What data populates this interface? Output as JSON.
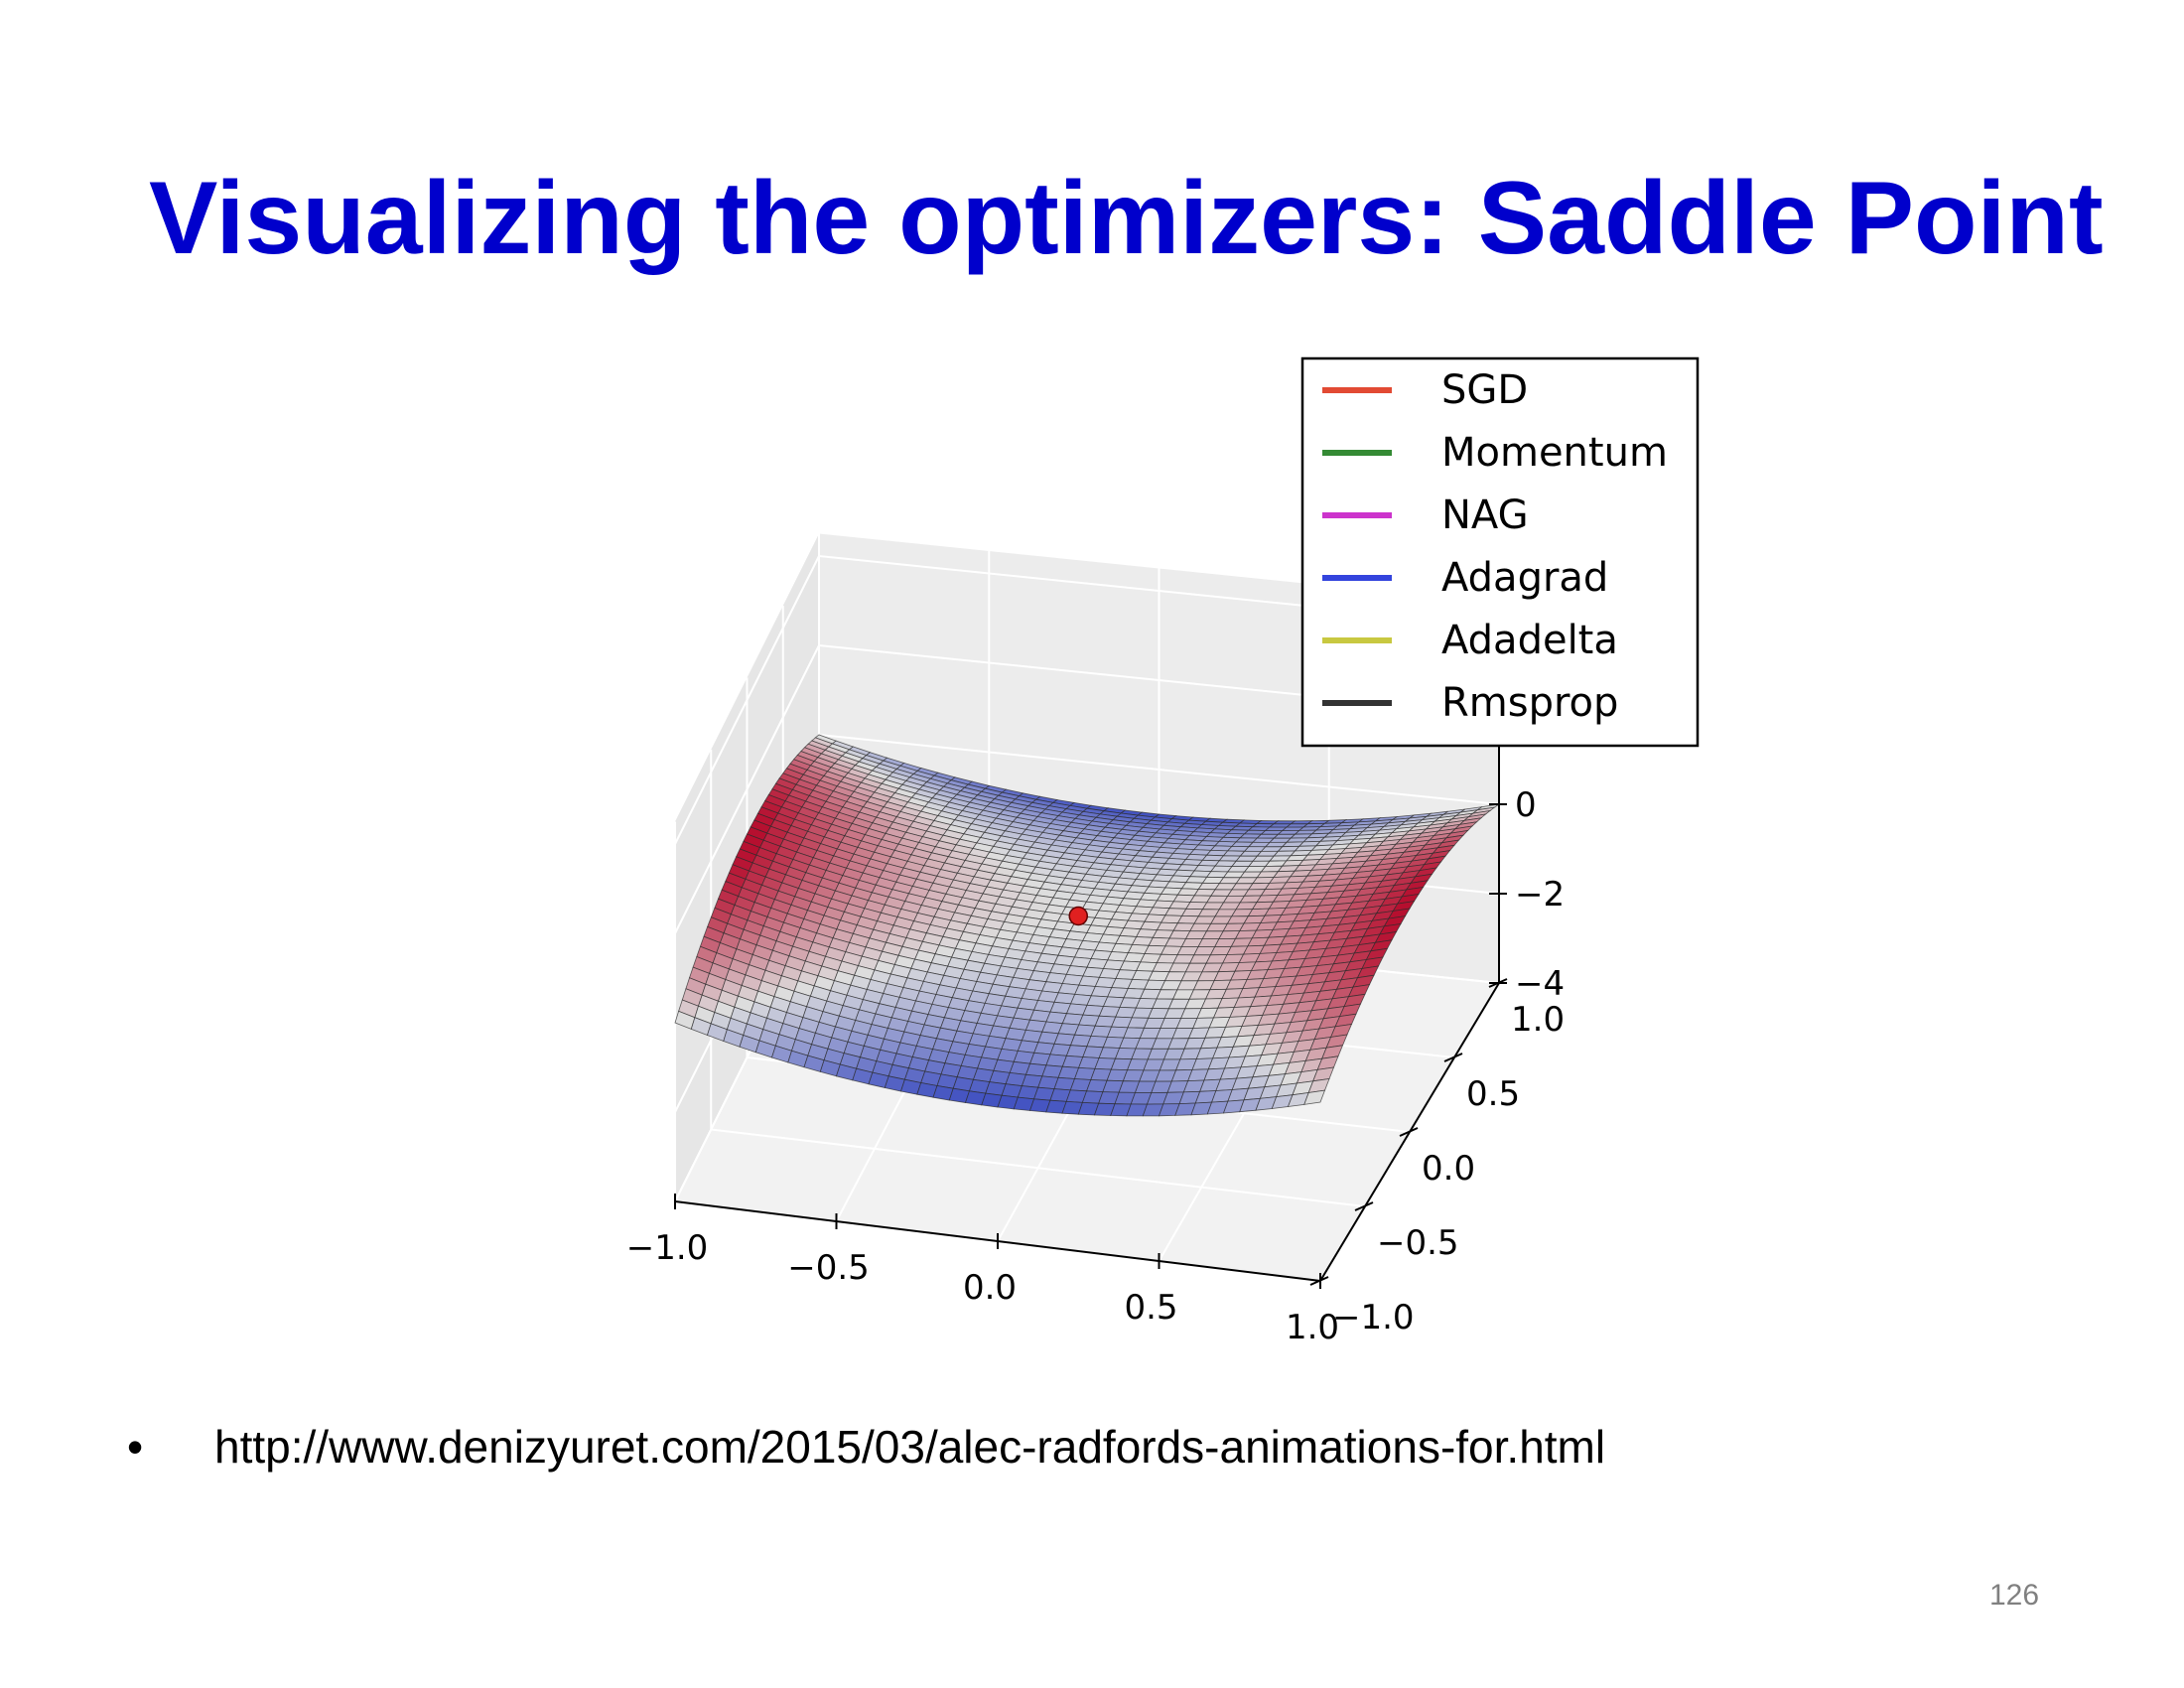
{
  "slide": {
    "title": "Visualizing the optimizers: Saddle Point",
    "bullet_symbol": "•",
    "bullet_text": "http://www.denizyuret.com/2015/03/alec-radfords-animations-for.html",
    "page_number": "126"
  },
  "chart_data": {
    "type": "surface",
    "function": "z = x^2 - y^2",
    "x_ticks": [
      -1.0,
      -0.5,
      0.0,
      0.5,
      1.0
    ],
    "x_tick_labels": [
      "−1.0",
      "−0.5",
      "0.0",
      "0.5",
      "1.0"
    ],
    "y_ticks": [
      -1.0,
      -0.5,
      0.0,
      0.5,
      1.0
    ],
    "y_tick_labels": [
      "−1.0",
      "−0.5",
      "0.0",
      "0.5",
      "1.0"
    ],
    "z_ticks": [
      -4,
      -2,
      0
    ],
    "z_tick_labels": [
      "−4",
      "−2",
      "0"
    ],
    "xlim": [
      -1.0,
      1.0
    ],
    "ylim": [
      -1.0,
      1.0
    ],
    "zlim": [
      -4,
      4
    ],
    "colormap": "coolwarm",
    "grid": true,
    "legend_position": "top-right",
    "series": [
      {
        "name": "SGD",
        "color": "#e24a33"
      },
      {
        "name": "Momentum",
        "color": "#348a34"
      },
      {
        "name": "NAG",
        "color": "#cc33cc"
      },
      {
        "name": "Adagrad",
        "color": "#3344dd"
      },
      {
        "name": "Adadelta",
        "color": "#c8c840"
      },
      {
        "name": "Rmsprop",
        "color": "#333333"
      }
    ],
    "points": [
      {
        "x": 0.0,
        "y": 0.0,
        "z": 0.0,
        "color": "#e02020"
      }
    ]
  }
}
